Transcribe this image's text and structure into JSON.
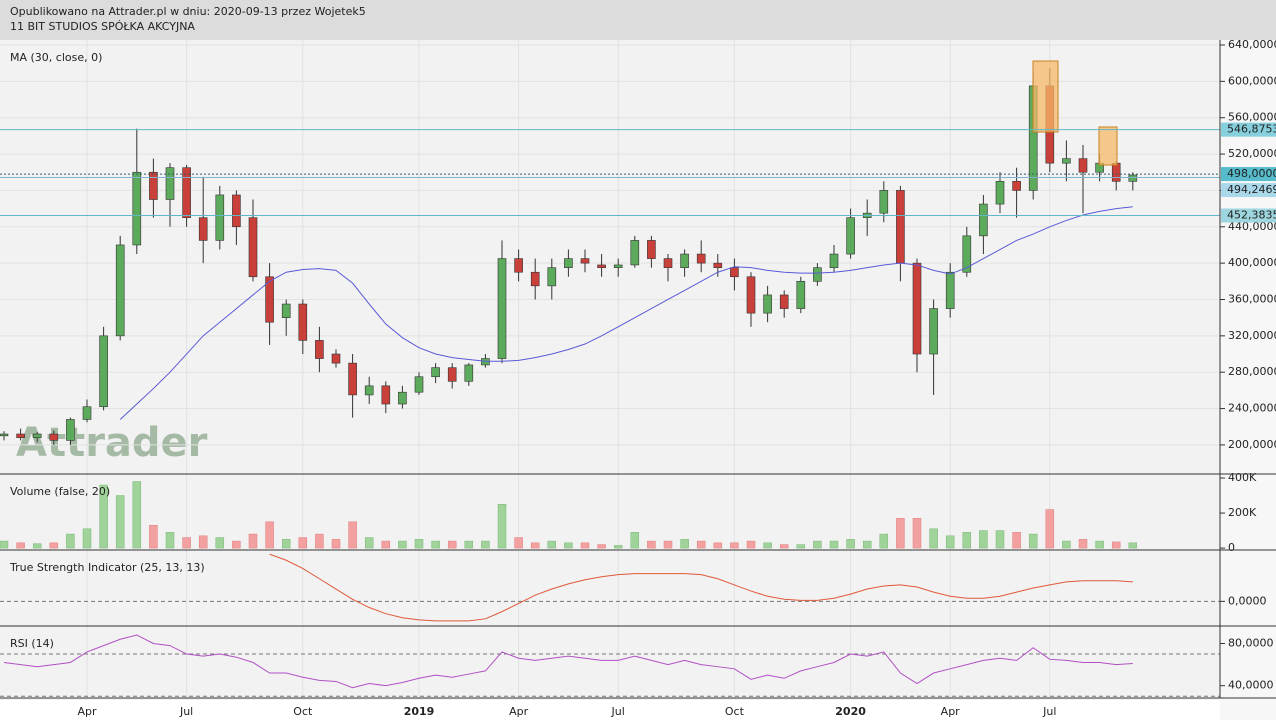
{
  "header": {
    "line1": "Opublikowano na Attrader.pl w dniu: 2020-09-13 przez Wojetek5",
    "line2": "11 BIT STUDIOS SPÓŁKA AKCYJNA"
  },
  "watermark": "Attrader",
  "chart_data": [
    {
      "type": "candlestick",
      "categories": [
        null,
        null,
        null,
        null,
        null,
        "Apr",
        null,
        null,
        null,
        null,
        null,
        "Jul",
        null,
        null,
        null,
        null,
        null,
        null,
        "Oct",
        null,
        null,
        null,
        null,
        null,
        null,
        "2019",
        null,
        null,
        null,
        null,
        null,
        "Apr",
        null,
        null,
        null,
        null,
        null,
        "Jul",
        null,
        null,
        null,
        null,
        null,
        null,
        "Oct",
        null,
        null,
        null,
        null,
        null,
        null,
        "2020",
        null,
        null,
        null,
        null,
        null,
        "Apr",
        null,
        null,
        null,
        null,
        null,
        "Jul",
        null,
        null,
        null,
        null,
        null
      ],
      "open": [
        210,
        212,
        208,
        212,
        205,
        228,
        242,
        320,
        420,
        500,
        470,
        505,
        450,
        425,
        475,
        450,
        385,
        340,
        355,
        315,
        300,
        290,
        255,
        265,
        245,
        258,
        275,
        285,
        270,
        288,
        295,
        405,
        390,
        375,
        395,
        405,
        398,
        395,
        398,
        425,
        405,
        395,
        410,
        400,
        395,
        385,
        345,
        365,
        350,
        380,
        395,
        410,
        450,
        455,
        480,
        400,
        300,
        350,
        390,
        430,
        465,
        490,
        480,
        595,
        510,
        515,
        500,
        510,
        490
      ],
      "high": [
        215,
        218,
        214,
        216,
        230,
        250,
        330,
        430,
        548,
        515,
        510,
        508,
        495,
        485,
        480,
        470,
        400,
        360,
        360,
        330,
        305,
        300,
        275,
        270,
        265,
        280,
        290,
        290,
        290,
        300,
        425,
        415,
        405,
        405,
        415,
        415,
        410,
        405,
        430,
        430,
        410,
        415,
        425,
        410,
        405,
        390,
        375,
        370,
        385,
        400,
        420,
        460,
        470,
        490,
        485,
        405,
        360,
        400,
        440,
        475,
        500,
        505,
        610,
        615,
        535,
        530,
        520,
        512,
        500
      ],
      "low": [
        205,
        205,
        203,
        200,
        200,
        225,
        238,
        315,
        410,
        450,
        440,
        440,
        400,
        415,
        420,
        380,
        310,
        320,
        300,
        280,
        285,
        230,
        245,
        235,
        240,
        255,
        268,
        262,
        265,
        285,
        290,
        380,
        360,
        360,
        385,
        390,
        385,
        385,
        395,
        395,
        380,
        385,
        390,
        385,
        370,
        330,
        335,
        340,
        345,
        375,
        390,
        405,
        430,
        445,
        380,
        280,
        255,
        340,
        385,
        410,
        455,
        450,
        470,
        500,
        490,
        455,
        490,
        480,
        480
      ],
      "close": [
        212,
        208,
        212,
        205,
        228,
        242,
        320,
        420,
        500,
        470,
        505,
        450,
        425,
        475,
        440,
        385,
        335,
        355,
        315,
        295,
        290,
        255,
        265,
        245,
        258,
        275,
        285,
        270,
        288,
        295,
        405,
        390,
        375,
        395,
        405,
        400,
        395,
        398,
        425,
        405,
        395,
        410,
        400,
        395,
        385,
        345,
        365,
        350,
        380,
        395,
        410,
        450,
        455,
        480,
        400,
        300,
        350,
        390,
        430,
        465,
        490,
        480,
        595,
        510,
        515,
        500,
        510,
        490,
        497
      ],
      "up_color": "#5cab5c",
      "down_color": "#c9403a",
      "ma": {
        "name": "MA (30, close, 0)",
        "color": "#5a5ad8",
        "values": [
          null,
          null,
          null,
          null,
          null,
          null,
          null,
          228,
          245,
          262,
          280,
          300,
          320,
          335,
          350,
          365,
          380,
          390,
          393,
          394,
          392,
          378,
          355,
          333,
          318,
          307,
          300,
          296,
          294,
          292,
          292,
          293,
          296,
          300,
          305,
          311,
          320,
          330,
          340,
          350,
          360,
          370,
          380,
          390,
          396,
          395,
          392,
          390,
          389,
          389,
          390,
          392,
          395,
          398,
          400,
          398,
          392,
          388,
          395,
          405,
          415,
          425,
          432,
          440,
          447,
          453,
          457,
          460,
          462
        ]
      },
      "levels": [
        {
          "value": 546.8753,
          "label": "546,8753",
          "color": "#86cfdc",
          "line": "#5fb8c8",
          "dash": false
        },
        {
          "value": 498,
          "label": "498,0000",
          "color": "#56bccb",
          "line": "#2f5d6a",
          "dash": true
        },
        {
          "value": 494.2469,
          "label": "494,2469",
          "color": "#a9d8ea",
          "line": "#7fb3d0",
          "dash": false
        },
        {
          "value": 452.3835,
          "label": "452,3835",
          "color": "#9ed6df",
          "line": "#5fb8c8",
          "dash": false
        }
      ],
      "ylim": [
        168,
        645.5
      ],
      "yticks": [
        {
          "value": 200,
          "label": "200,0000"
        },
        {
          "value": 240,
          "label": "240,0000"
        },
        {
          "value": 280,
          "label": "280,0000"
        },
        {
          "value": 320,
          "label": "320,0000"
        },
        {
          "value": 360,
          "label": "360,0000"
        },
        {
          "value": 400,
          "label": "400,0000"
        },
        {
          "value": 440,
          "label": "440,0000"
        },
        {
          "value": 480,
          "label": "480,0000"
        },
        {
          "value": 520,
          "label": "520,0000"
        },
        {
          "value": 560,
          "label": "560,0000"
        },
        {
          "value": 600,
          "label": "600,0000"
        },
        {
          "value": 640,
          "label": "640,0000"
        }
      ],
      "grid": true
    },
    {
      "type": "bar",
      "title": "Volume (false, 20)",
      "up_color": "#9fd39a",
      "down_color": "#f3a0a0",
      "values": [
        40000,
        30000,
        25000,
        30000,
        80000,
        110000,
        360000,
        300000,
        380000,
        130000,
        90000,
        60000,
        70000,
        60000,
        40000,
        80000,
        150000,
        50000,
        60000,
        80000,
        50000,
        150000,
        60000,
        40000,
        40000,
        50000,
        40000,
        40000,
        40000,
        40000,
        250000,
        60000,
        30000,
        40000,
        30000,
        30000,
        20000,
        15000,
        90000,
        40000,
        40000,
        50000,
        40000,
        30000,
        30000,
        40000,
        30000,
        20000,
        20000,
        40000,
        40000,
        50000,
        40000,
        80000,
        170000,
        170000,
        110000,
        70000,
        90000,
        100000,
        100000,
        90000,
        80000,
        220000,
        40000,
        50000,
        40000,
        35000,
        30000
      ],
      "ylim": [
        -11000,
        423000
      ],
      "yticks": [
        0,
        {
          "value": 200000,
          "label": "200K"
        },
        {
          "value": 400000,
          "label": "400K"
        }
      ]
    },
    {
      "type": "line",
      "title": "True Strength Indicator (25, 13, 13)",
      "color": "#e0583a",
      "values": [
        null,
        null,
        null,
        null,
        null,
        null,
        null,
        null,
        null,
        null,
        null,
        null,
        null,
        null,
        null,
        null,
        46,
        40,
        32,
        22,
        12,
        2,
        -6,
        -12,
        -16,
        -18,
        -19,
        -19,
        -19,
        -17,
        -10,
        -2,
        6,
        12,
        17,
        21,
        24,
        26,
        27,
        27,
        27,
        27,
        26,
        22,
        16,
        10,
        5,
        2,
        1,
        1,
        3,
        7,
        12,
        15,
        16,
        14,
        9,
        5,
        3,
        3,
        5,
        9,
        13,
        16,
        19,
        20,
        20,
        20,
        19
      ],
      "ylim": [
        -24,
        50
      ],
      "yticks": [
        {
          "value": 0,
          "label": "0,0000"
        }
      ]
    },
    {
      "type": "line",
      "title": "RSI (14)",
      "color": "#b150c4",
      "values": [
        62,
        60,
        58,
        60,
        62,
        72,
        78,
        84,
        88,
        80,
        78,
        70,
        68,
        70,
        67,
        62,
        52,
        52,
        48,
        45,
        44,
        38,
        42,
        40,
        43,
        47,
        50,
        48,
        51,
        54,
        72,
        66,
        64,
        66,
        68,
        66,
        64,
        64,
        68,
        64,
        60,
        64,
        60,
        58,
        56,
        46,
        50,
        47,
        54,
        58,
        62,
        70,
        68,
        72,
        52,
        42,
        52,
        56,
        60,
        64,
        66,
        64,
        76,
        65,
        64,
        62,
        62,
        60,
        61
      ],
      "ylim": [
        28.3,
        96.6
      ],
      "yticks": [
        {
          "value": 40,
          "label": "40,0000"
        },
        {
          "value": 80,
          "label": "80,0000"
        }
      ],
      "levels": [
        70,
        30
      ]
    }
  ]
}
